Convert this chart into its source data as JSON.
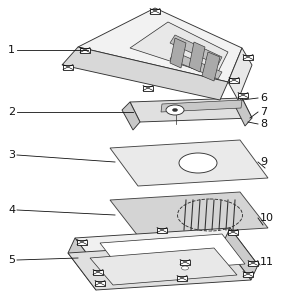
{
  "figure_size": [
    3.02,
    3.03
  ],
  "dpi": 100,
  "bg_color": "#ffffff",
  "line_color": "#333333",
  "line_width": 0.65,
  "label_fontsize": 8.0,
  "face_colors": {
    "top": "#f2f2f2",
    "left": "#d8d8d8",
    "right": "#e8e8e8",
    "channel": "#c0c0c0",
    "channel_dark": "#aaaaaa",
    "layer2_top": "#e0e0e0",
    "layer2_side": "#c8c8c8",
    "layer3": "#e8e8e8",
    "layer4": "#d0d0d0",
    "layer5_top": "#f0f0f0",
    "layer5_inner": "#ffffff",
    "layer5_side": "#cccccc",
    "layer5_bot": "#e0e0e0"
  }
}
